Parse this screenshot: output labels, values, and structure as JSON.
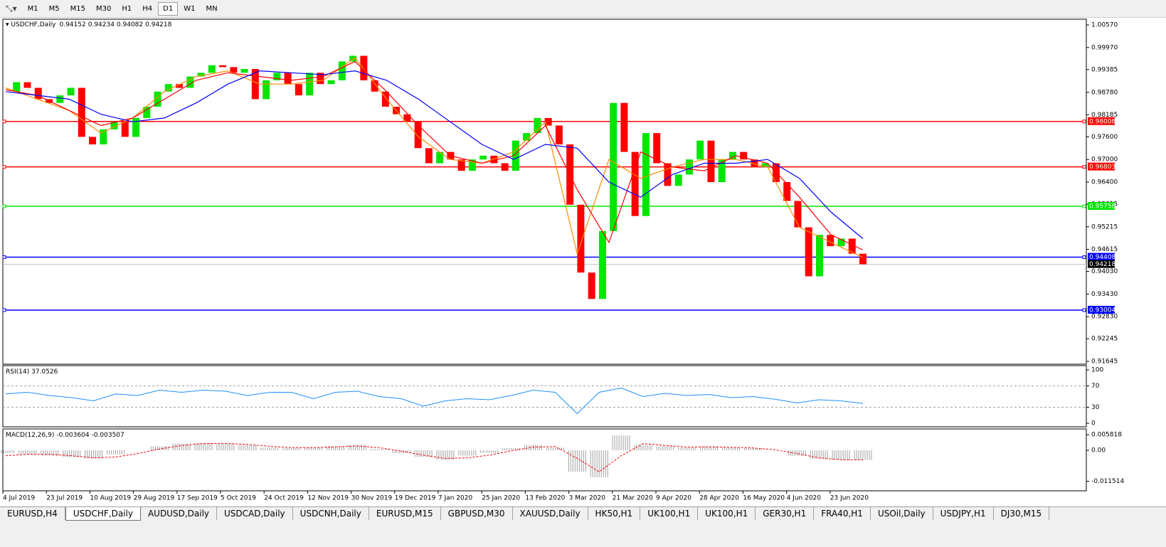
{
  "toolbar": {
    "timeframes": [
      "M1",
      "M5",
      "M15",
      "M30",
      "H1",
      "H4",
      "D1",
      "W1",
      "MN"
    ],
    "active": "D1"
  },
  "chart_data": {
    "type": "candlestick",
    "symbol": "USDCHF,Daily",
    "ohlc": [
      0.94152,
      0.94234,
      0.94082,
      0.94218
    ],
    "up_color": "#00e600",
    "down_color": "#ff0000",
    "closes": [
      0.988,
      0.9905,
      0.989,
      0.986,
      0.985,
      0.987,
      0.989,
      0.976,
      0.974,
      0.978,
      0.98,
      0.976,
      0.981,
      0.984,
      0.988,
      0.99,
      0.989,
      0.992,
      0.993,
      0.995,
      0.9945,
      0.993,
      0.994,
      0.986,
      0.991,
      0.993,
      0.99,
      0.987,
      0.993,
      0.99,
      0.991,
      0.996,
      0.9975,
      0.991,
      0.988,
      0.984,
      0.982,
      0.98,
      0.973,
      0.969,
      0.972,
      0.97,
      0.967,
      0.97,
      0.971,
      0.969,
      0.967,
      0.975,
      0.977,
      0.981,
      0.979,
      0.974,
      0.958,
      0.94,
      0.933,
      0.951,
      0.985,
      0.972,
      0.955,
      0.977,
      0.969,
      0.963,
      0.966,
      0.97,
      0.975,
      0.964,
      0.97,
      0.972,
      0.97,
      0.968,
      0.969,
      0.964,
      0.959,
      0.952,
      0.939,
      0.95,
      0.947,
      0.949,
      0.945,
      0.9422
    ],
    "moving_averages": [
      {
        "color": "#ff8c00",
        "values": [
          0.989,
          0.986,
          0.983,
          0.977,
          0.981,
          0.988,
          0.992,
          0.9935,
          0.99,
          0.99,
          0.991,
          0.997,
          0.986,
          0.976,
          0.97,
          0.969,
          0.972,
          0.98,
          0.945,
          0.97,
          0.965,
          0.968,
          0.97,
          0.97,
          0.968,
          0.952,
          0.948,
          0.944
        ]
      },
      {
        "color": "#ff0000",
        "values": [
          0.9885,
          0.987,
          0.983,
          0.979,
          0.981,
          0.986,
          0.991,
          0.993,
          0.992,
          0.991,
          0.992,
          0.996,
          0.988,
          0.979,
          0.971,
          0.969,
          0.971,
          0.979,
          0.962,
          0.948,
          0.972,
          0.968,
          0.967,
          0.971,
          0.969,
          0.96,
          0.95,
          0.946
        ]
      },
      {
        "color": "#0000ff",
        "values": [
          0.988,
          0.987,
          0.986,
          0.982,
          0.98,
          0.981,
          0.985,
          0.99,
          0.9935,
          0.993,
          0.9925,
          0.9935,
          0.991,
          0.986,
          0.98,
          0.974,
          0.97,
          0.974,
          0.973,
          0.964,
          0.96,
          0.966,
          0.969,
          0.969,
          0.97,
          0.965,
          0.956,
          0.949
        ]
      }
    ],
    "ylim": [
      0.91588,
      1.00702
    ],
    "yticks": [
      {
        "value": 1.0057,
        "label": "1.00570"
      },
      {
        "value": 0.9997,
        "label": "0.99970"
      },
      {
        "value": 0.99385,
        "label": "0.99385"
      },
      {
        "value": 0.9878,
        "label": "0.98780"
      },
      {
        "value": 0.98185,
        "label": "0.98185"
      },
      {
        "value": 0.976,
        "label": "0.97600"
      },
      {
        "value": 0.97,
        "label": "0.97000"
      },
      {
        "value": 0.964,
        "label": "0.96400"
      },
      {
        "value": 0.95815,
        "label": "0.95815"
      },
      {
        "value": 0.95215,
        "label": "0.95215"
      },
      {
        "value": 0.94615,
        "label": "0.94615"
      },
      {
        "value": 0.9403,
        "label": "0.94030"
      },
      {
        "value": 0.9343,
        "label": "0.93430"
      },
      {
        "value": 0.9283,
        "label": "0.92830"
      },
      {
        "value": 0.92245,
        "label": "0.92245"
      },
      {
        "value": 0.91645,
        "label": "0.91645"
      }
    ],
    "levels": [
      {
        "value": 0.98008,
        "color": "#ff0000"
      },
      {
        "value": 0.96803,
        "color": "#ff0000"
      },
      {
        "value": 0.95758,
        "color": "#00e600"
      },
      {
        "value": 0.94408,
        "color": "#0000ff"
      },
      {
        "value": 0.93004,
        "color": "#0000ff"
      }
    ],
    "last_price_color": "#c0c0c0",
    "xtick_labels": [
      "4 Jul 2019",
      "23 Jul 2019",
      "10 Aug 2019",
      "29 Aug 2019",
      "17 Sep 2019",
      "5 Oct 2019",
      "24 Oct 2019",
      "12 Nov 2019",
      "30 Nov 2019",
      "19 Dec 2019",
      "7 Jan 2020",
      "25 Jan 2020",
      "13 Feb 2020",
      "3 Mar 2020",
      "21 Mar 2020",
      "9 Apr 2020",
      "28 Apr 2020",
      "16 May 2020",
      "4 Jun 2020",
      "23 Jun 2020"
    ],
    "rsi": {
      "title": "RSI(14)",
      "color": "#1e90ff",
      "ylim": [
        0,
        100
      ],
      "yticks": [
        100,
        70,
        30,
        0
      ],
      "levels": [
        70,
        30
      ],
      "values": [
        55,
        58,
        52,
        48,
        42,
        55,
        52,
        62,
        58,
        62,
        60,
        52,
        58,
        58,
        46,
        58,
        60,
        50,
        46,
        32,
        42,
        46,
        44,
        52,
        62,
        58,
        18,
        58,
        66,
        50,
        56,
        52,
        54,
        48,
        50,
        45,
        38,
        44,
        42,
        37.0526
      ]
    },
    "macd": {
      "title": "MACD(12,26,9)",
      "histogram_color": "#a0a0a0",
      "signal_color": "#ff0000",
      "ylim": [
        -0.0148,
        0.0077
      ],
      "yticks": [
        0.005818,
        {
          "value": 0,
          "label": "0.00"
        },
        -0.011514
      ],
      "histogram": [
        -0.001,
        -0.0015,
        -0.002,
        -0.0025,
        -0.003,
        -0.0015,
        0,
        0.0015,
        0.0025,
        0.0028,
        0.0025,
        0.002,
        0.001,
        0.0008,
        0.001,
        0.0015,
        0.002,
        0.0005,
        -0.001,
        -0.0025,
        -0.0035,
        -0.002,
        -0.001,
        0.0008,
        0.002,
        0.001,
        -0.008,
        -0.01,
        0.0055,
        0.002,
        0.0015,
        0.001,
        0.0015,
        0.001,
        0.0008,
        0,
        -0.002,
        -0.0032,
        -0.0036,
        -0.003604
      ],
      "signal": [
        -0.002,
        -0.0015,
        -0.0015,
        -0.002,
        -0.0028,
        -0.0025,
        -0.0012,
        0.0005,
        0.0018,
        0.0025,
        0.0026,
        0.0022,
        0.0015,
        0.001,
        0.001,
        0.0013,
        0.0016,
        0.001,
        -0.0003,
        -0.0018,
        -0.003,
        -0.0028,
        -0.0018,
        -0.0002,
        0.0012,
        0.0014,
        -0.003,
        -0.008,
        -0.002,
        0.0025,
        0.0018,
        0.0012,
        0.0013,
        0.0011,
        0.0009,
        0.0002,
        -0.0012,
        -0.0028,
        -0.0035,
        -0.003507
      ]
    }
  },
  "tabs": {
    "items": [
      "EURUSD,H4",
      "USDCHF,Daily",
      "AUDUSD,Daily",
      "USDCAD,Daily",
      "USDCNH,Daily",
      "EURUSD,M15",
      "GBPUSD,M30",
      "XAUUSD,Daily",
      "HK50,H1",
      "UK100,H1",
      "UK100,H1",
      "GER30,H1",
      "FRA40,H1",
      "USOil,Daily",
      "USDJPY,H1",
      "DJ30,M15"
    ],
    "active": 1
  }
}
